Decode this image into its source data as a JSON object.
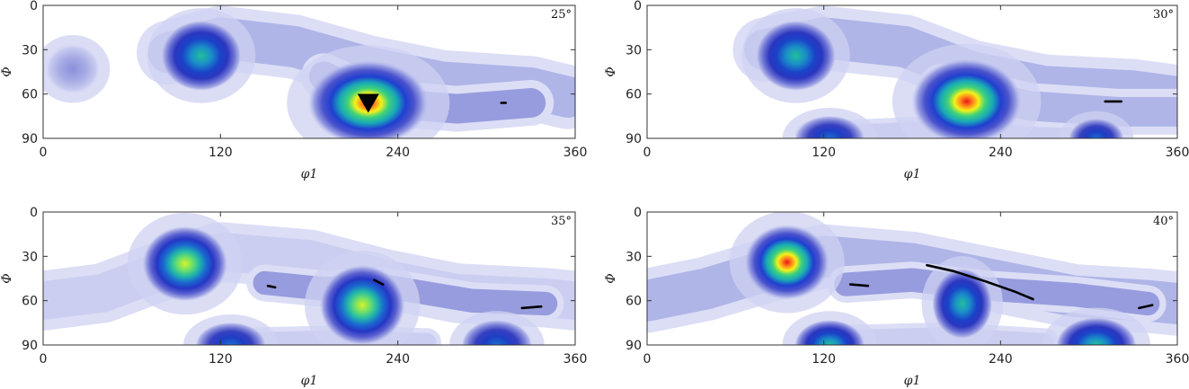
{
  "chart_data": [
    {
      "type": "heatmap",
      "annotation": "25°",
      "xlabel": "φ1",
      "ylabel": "Φ",
      "xlim": [
        0,
        360
      ],
      "ylim": [
        0,
        90
      ],
      "xticks": [
        0,
        120,
        240,
        360
      ],
      "yticks": [
        0,
        30,
        60,
        90
      ],
      "grid": false,
      "peaks": [
        {
          "x": 107,
          "y": 34,
          "intensity": 0.62,
          "rx": 16,
          "ry": 14
        },
        {
          "x": 220,
          "y": 66,
          "intensity": 1.0,
          "rx": 24,
          "ry": 17
        },
        {
          "x": 20,
          "y": 43,
          "intensity": 0.33,
          "rx": 11,
          "ry": 10
        }
      ],
      "background_bands": [
        {
          "path": [
            [
              85,
              32
            ],
            [
              120,
              22
            ],
            [
              170,
              28
            ],
            [
              220,
              42
            ],
            [
              270,
              52
            ],
            [
              330,
              56
            ],
            [
              355,
              62
            ]
          ],
          "width": 28,
          "intensity": 0.3
        },
        {
          "path": [
            [
              190,
              48
            ],
            [
              230,
              66
            ],
            [
              280,
              70
            ],
            [
              330,
              66
            ]
          ],
          "width": 20,
          "intensity": 0.38
        }
      ],
      "markers": [
        {
          "x": 220,
          "y": 66,
          "shape": "triangle-down"
        }
      ],
      "lines": [
        [
          [
            310,
            66
          ],
          [
            313,
            66
          ]
        ]
      ]
    },
    {
      "type": "heatmap",
      "annotation": "30°",
      "xlabel": "φ1",
      "ylabel": "Φ",
      "xlim": [
        0,
        360
      ],
      "ylim": [
        0,
        90
      ],
      "xticks": [
        0,
        120,
        240,
        360
      ],
      "yticks": [
        0,
        30,
        60,
        90
      ],
      "grid": false,
      "peaks": [
        {
          "x": 101,
          "y": 34,
          "intensity": 0.6,
          "rx": 16,
          "ry": 14
        },
        {
          "x": 217,
          "y": 65,
          "intensity": 1.0,
          "rx": 22,
          "ry": 17
        },
        {
          "x": 124,
          "y": 90,
          "intensity": 0.45,
          "rx": 14,
          "ry": 9
        },
        {
          "x": 305,
          "y": 90,
          "intensity": 0.42,
          "rx": 11,
          "ry": 8
        }
      ],
      "background_bands": [
        {
          "path": [
            [
              80,
              30
            ],
            [
              120,
              22
            ],
            [
              175,
              28
            ],
            [
              220,
              45
            ],
            [
              270,
              55
            ],
            [
              330,
              58
            ],
            [
              360,
              62
            ]
          ],
          "width": 28,
          "intensity": 0.3
        },
        {
          "path": [
            [
              200,
              55
            ],
            [
              260,
              68
            ],
            [
              320,
              72
            ],
            [
              360,
              72
            ]
          ],
          "width": 20,
          "intensity": 0.3
        },
        {
          "path": [
            [
              110,
              88
            ],
            [
              200,
              84
            ],
            [
              260,
              88
            ],
            [
              310,
              90
            ]
          ],
          "width": 12,
          "intensity": 0.28
        }
      ],
      "markers": [],
      "lines": [
        [
          [
            311,
            65
          ],
          [
            322,
            65
          ]
        ]
      ]
    },
    {
      "type": "heatmap",
      "annotation": "35°",
      "xlabel": "φ1",
      "ylabel": "Φ",
      "xlim": [
        0,
        360
      ],
      "ylim": [
        0,
        90
      ],
      "xticks": [
        0,
        120,
        240,
        360
      ],
      "yticks": [
        0,
        30,
        60,
        90
      ],
      "grid": false,
      "peaks": [
        {
          "x": 96,
          "y": 35,
          "intensity": 0.78,
          "rx": 17,
          "ry": 15
        },
        {
          "x": 216,
          "y": 63,
          "intensity": 0.85,
          "rx": 17,
          "ry": 16
        },
        {
          "x": 127,
          "y": 90,
          "intensity": 0.5,
          "rx": 14,
          "ry": 9
        },
        {
          "x": 307,
          "y": 90,
          "intensity": 0.5,
          "rx": 14,
          "ry": 10
        }
      ],
      "background_bands": [
        {
          "path": [
            [
              0,
              60
            ],
            [
              40,
              55
            ],
            [
              80,
              40
            ],
            [
              120,
              27
            ],
            [
              180,
              32
            ],
            [
              230,
              45
            ],
            [
              280,
              55
            ],
            [
              340,
              58
            ],
            [
              360,
              60
            ]
          ],
          "width": 26,
          "intensity": 0.28
        },
        {
          "path": [
            [
              150,
              48
            ],
            [
              190,
              52
            ],
            [
              230,
              50
            ],
            [
              290,
              60
            ],
            [
              340,
              62
            ]
          ],
          "width": 16,
          "intensity": 0.36
        },
        {
          "path": [
            [
              120,
              88
            ],
            [
              200,
              86
            ],
            [
              260,
              88
            ]
          ],
          "width": 12,
          "intensity": 0.26
        }
      ],
      "markers": [],
      "lines": [
        [
          [
            152,
            50
          ],
          [
            157,
            51
          ]
        ],
        [
          [
            224,
            46
          ],
          [
            230,
            49
          ]
        ],
        [
          [
            324,
            65
          ],
          [
            337,
            64
          ]
        ]
      ]
    },
    {
      "type": "heatmap",
      "annotation": "40°",
      "xlabel": "φ1",
      "ylabel": "Φ",
      "xlim": [
        0,
        360
      ],
      "ylim": [
        0,
        90
      ],
      "xticks": [
        0,
        120,
        240,
        360
      ],
      "yticks": [
        0,
        30,
        60,
        90
      ],
      "grid": false,
      "peaks": [
        {
          "x": 95,
          "y": 34,
          "intensity": 0.98,
          "rx": 17,
          "ry": 15
        },
        {
          "x": 214,
          "y": 62,
          "intensity": 0.55,
          "rx": 12,
          "ry": 14
        },
        {
          "x": 124,
          "y": 90,
          "intensity": 0.58,
          "rx": 14,
          "ry": 10
        },
        {
          "x": 305,
          "y": 90,
          "intensity": 0.62,
          "rx": 16,
          "ry": 11
        }
      ],
      "background_bands": [
        {
          "path": [
            [
              0,
              60
            ],
            [
              40,
              52
            ],
            [
              80,
              40
            ],
            [
              120,
              30
            ],
            [
              180,
              35
            ],
            [
              230,
              45
            ],
            [
              290,
              57
            ],
            [
              340,
              60
            ],
            [
              360,
              62
            ]
          ],
          "width": 28,
          "intensity": 0.3
        },
        {
          "path": [
            [
              135,
              49
            ],
            [
              180,
              46
            ],
            [
              230,
              52
            ],
            [
              290,
              56
            ],
            [
              340,
              62
            ]
          ],
          "width": 16,
          "intensity": 0.38
        },
        {
          "path": [
            [
              130,
              86
            ],
            [
              200,
              84
            ],
            [
              270,
              88
            ]
          ],
          "width": 12,
          "intensity": 0.24
        }
      ],
      "markers": [],
      "lines": [
        [
          [
            138,
            49
          ],
          [
            150,
            50
          ]
        ],
        [
          [
            190,
            36
          ],
          [
            208,
            40
          ],
          [
            230,
            47
          ],
          [
            250,
            54
          ],
          [
            262,
            59
          ]
        ],
        [
          [
            334,
            65
          ],
          [
            343,
            63
          ]
        ]
      ]
    }
  ]
}
